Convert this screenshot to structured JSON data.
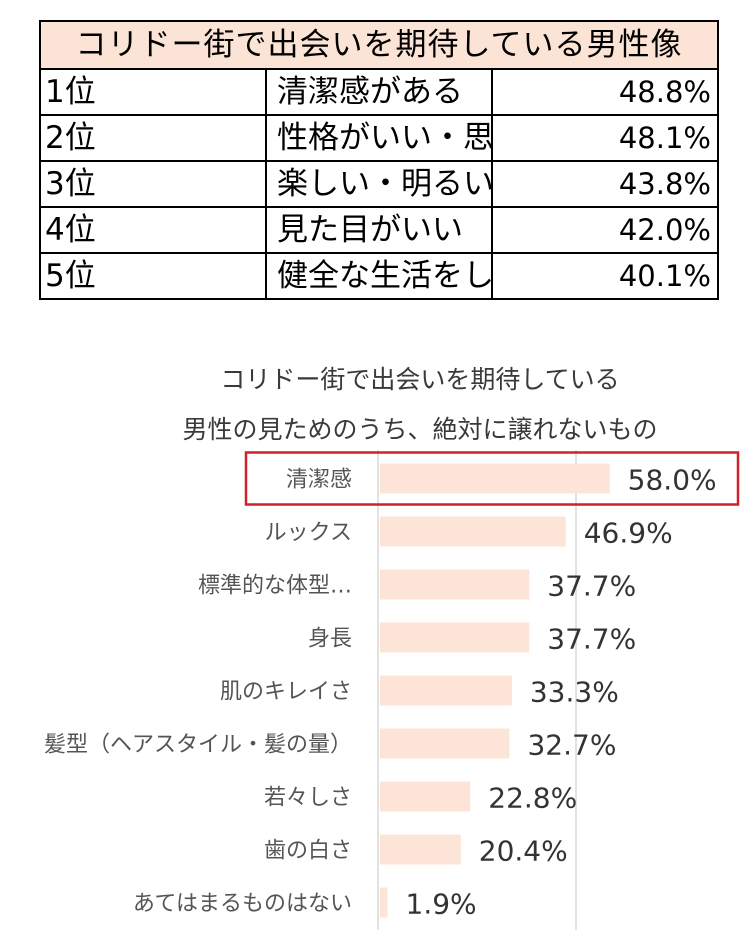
{
  "ranking_table": {
    "title": "コリドー街で出会いを期待している男性像",
    "header_bg": "#fbe4d5",
    "rows": [
      {
        "rank": "1位",
        "item": "清潔感がある",
        "percent": "48.8%"
      },
      {
        "rank": "2位",
        "item": "性格がいい・思いやりがある",
        "percent": "48.1%"
      },
      {
        "rank": "3位",
        "item": "楽しい・明るい",
        "percent": "43.8%"
      },
      {
        "rank": "4位",
        "item": "見た目がいい",
        "percent": "42.0%"
      },
      {
        "rank": "5位",
        "item": "健全な生活をしている",
        "percent": "40.1%"
      }
    ]
  },
  "chart_data": {
    "type": "bar",
    "orientation": "horizontal",
    "title_line1": "コリドー街で出会いを期待している",
    "title_line2": "男性の見ためのうち、絶対に譲れないもの",
    "categories": [
      "清潔感",
      "ルックス",
      "標準的な体型…",
      "身長",
      "肌のキレイさ",
      "髪型（ヘアスタイル・髪の量）",
      "若々しさ",
      "歯の白さ",
      "あてはまるものはない"
    ],
    "values": [
      58.0,
      46.9,
      37.7,
      37.7,
      33.3,
      32.7,
      22.8,
      20.4,
      1.9
    ],
    "value_labels": [
      "58.0%",
      "46.9%",
      "37.7%",
      "37.7%",
      "33.3%",
      "32.7%",
      "22.8%",
      "20.4%",
      "1.9%"
    ],
    "xlim": [
      0,
      50
    ],
    "grid": true,
    "highlighted_category": "清潔感",
    "bar_color": "#fce4d6",
    "highlight_border_color": "#cc2229",
    "gridline_color": "#d9d9d9"
  }
}
